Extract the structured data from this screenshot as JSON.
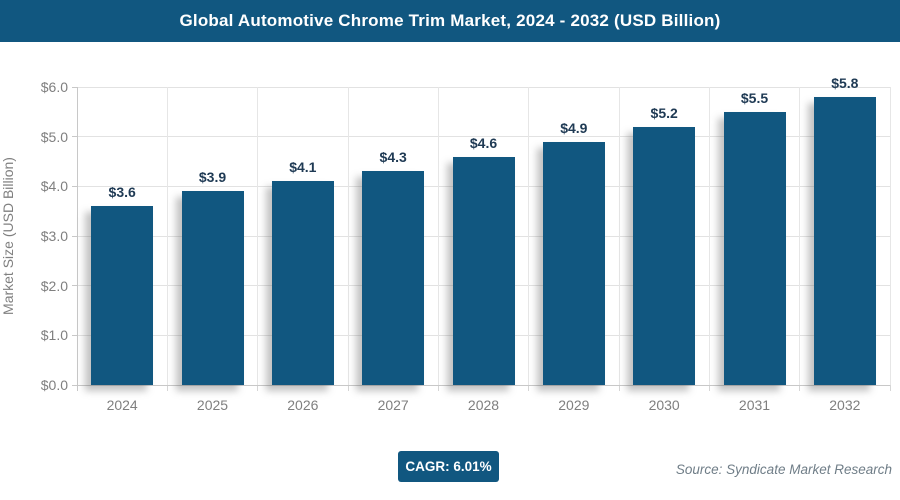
{
  "header": {
    "title": "Global Automotive Chrome Trim Market, 2024 - 2032 (USD Billion)",
    "background_color": "#115780",
    "text_color": "#ffffff"
  },
  "chart_data": {
    "type": "bar",
    "title": "Global Automotive Chrome Trim Market, 2024 - 2032 (USD Billion)",
    "categories": [
      "2024",
      "2025",
      "2026",
      "2027",
      "2028",
      "2029",
      "2030",
      "2031",
      "2032"
    ],
    "values": [
      3.6,
      3.9,
      4.1,
      4.3,
      4.6,
      4.9,
      5.2,
      5.5,
      5.8
    ],
    "value_labels": [
      "$3.6",
      "$3.9",
      "$4.1",
      "$4.3",
      "$4.6",
      "$4.9",
      "$5.2",
      "$5.5",
      "$5.8"
    ],
    "xlabel": "",
    "ylabel": "Market Size (USD Billion)",
    "ylim": [
      0,
      6
    ],
    "ytick_step": 1,
    "ytick_labels": [
      "$0.0",
      "$1.0",
      "$2.0",
      "$3.0",
      "$4.0",
      "$5.0",
      "$6.0"
    ],
    "grid": true,
    "legend": false,
    "bar_color": "#115780",
    "value_label_color": "#1f3a54",
    "axis_text_color": "#7f7f7f"
  },
  "footer": {
    "cagr_label": "CAGR: 6.01%",
    "cagr_background_color": "#115780",
    "source": "Source: Syndicate Market Research"
  }
}
